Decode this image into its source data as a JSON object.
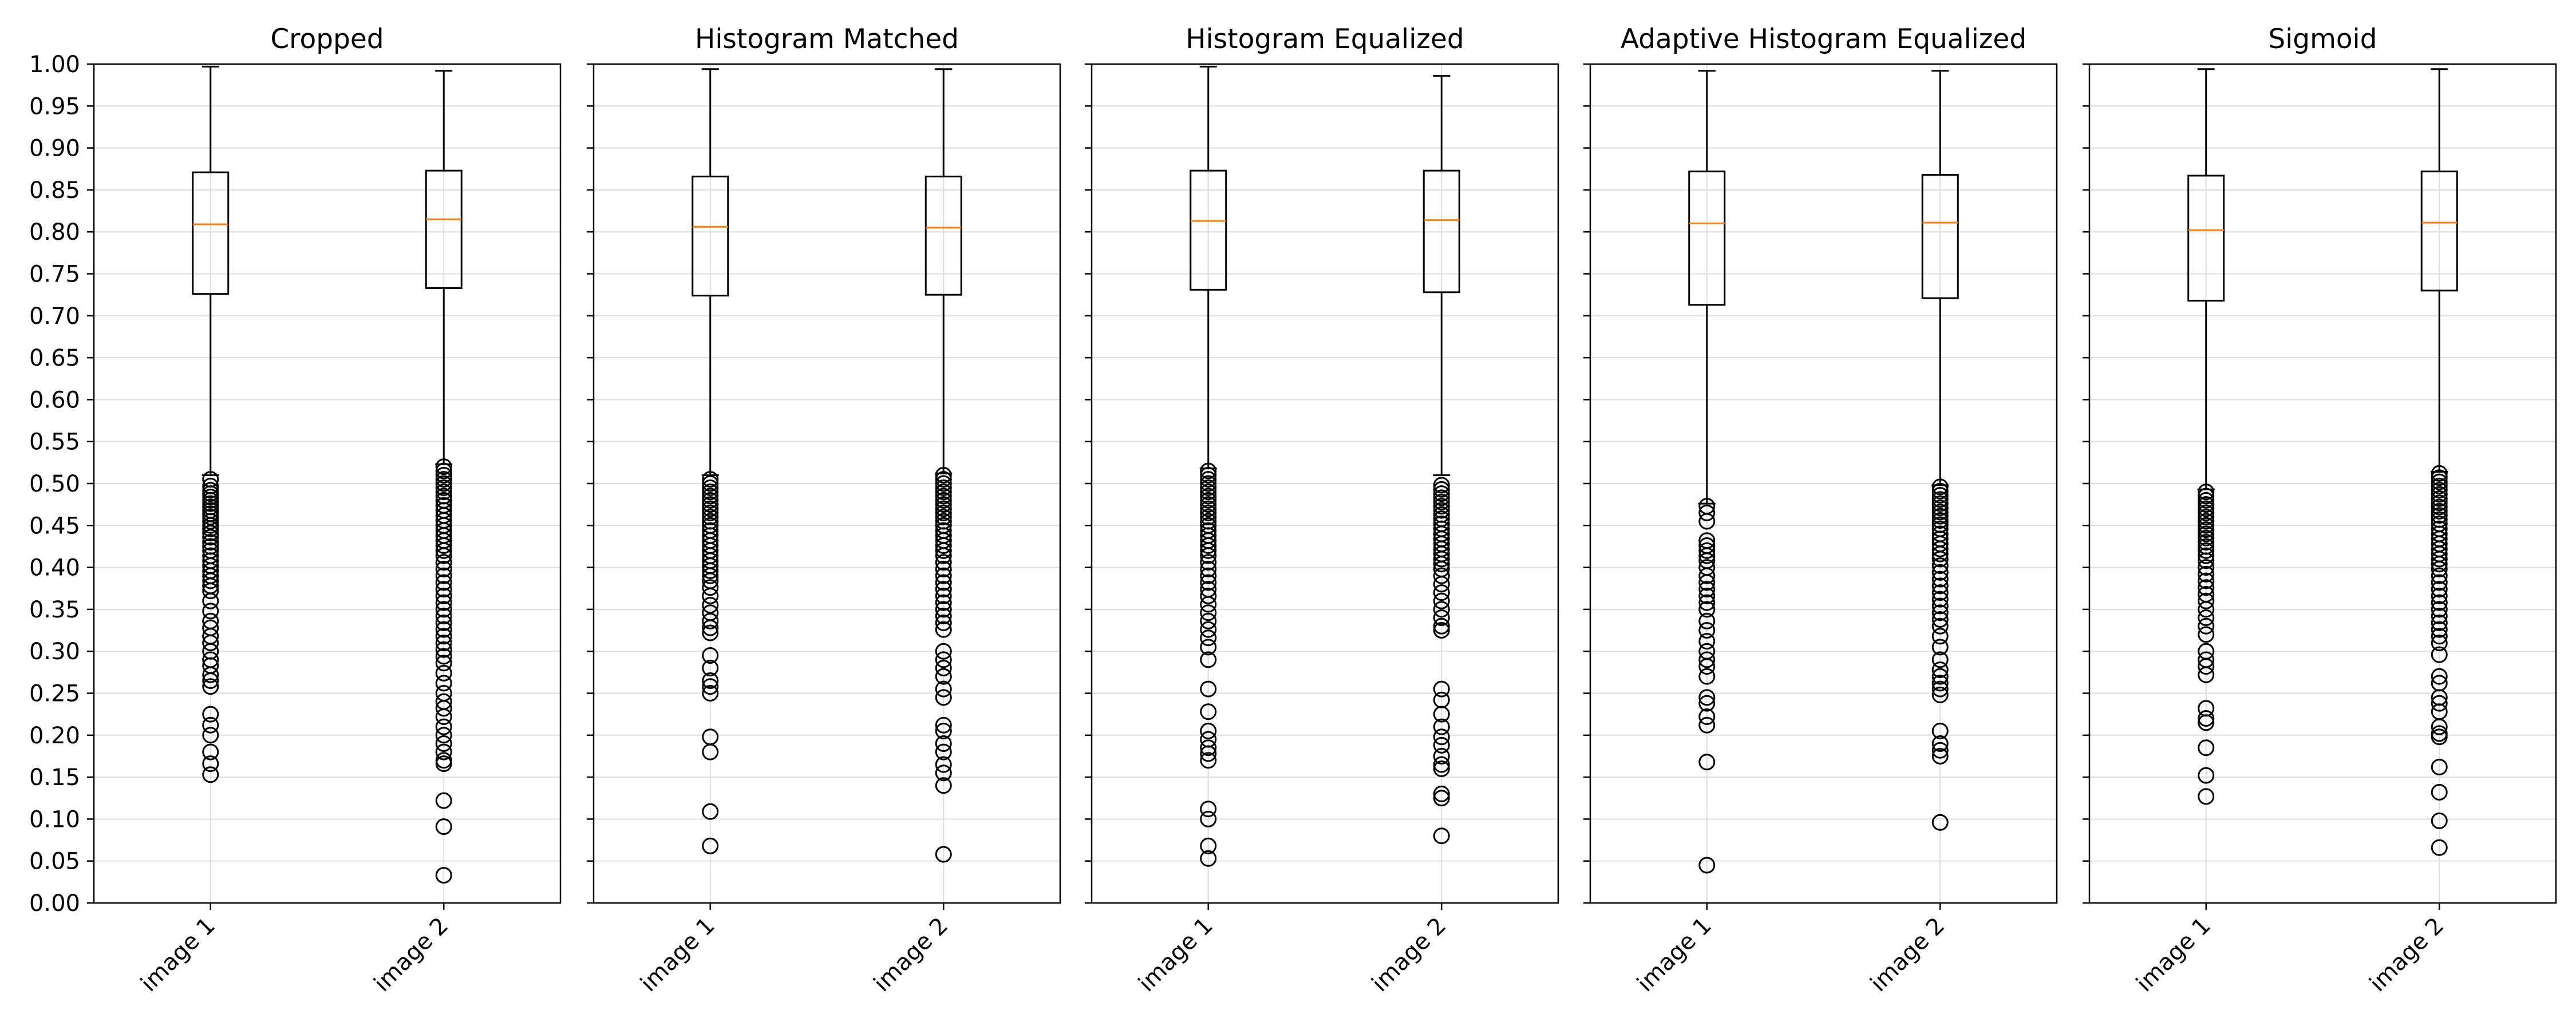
{
  "chart_data": {
    "type": "box",
    "ylim": [
      0,
      1
    ],
    "yticks": [
      0.0,
      0.05,
      0.1,
      0.15,
      0.2,
      0.25,
      0.3,
      0.35,
      0.4,
      0.45,
      0.5,
      0.55,
      0.6,
      0.65,
      0.7,
      0.75,
      0.8,
      0.85,
      0.9,
      0.95,
      1.0
    ],
    "ytick_labels": [
      "0.00",
      "0.05",
      "0.10",
      "0.15",
      "0.20",
      "0.25",
      "0.30",
      "0.35",
      "0.40",
      "0.45",
      "0.50",
      "0.55",
      "0.60",
      "0.65",
      "0.70",
      "0.75",
      "0.80",
      "0.85",
      "0.90",
      "0.95",
      "1.00"
    ],
    "grid": true,
    "shared_y": true,
    "categories": [
      "image 1",
      "image 2"
    ],
    "colors": {
      "box": "#000000",
      "median": "#ff7f0e",
      "grid": "#dddddd",
      "flier": "#000000"
    },
    "panels": [
      {
        "title": "Cropped",
        "boxes": [
          {
            "category": "image 1",
            "whisker_low": 0.51,
            "q1": 0.726,
            "median": 0.809,
            "q3": 0.871,
            "whisker_high": 0.997,
            "outliers": [
              0.505,
              0.497,
              0.492,
              0.488,
              0.484,
              0.48,
              0.476,
              0.472,
              0.468,
              0.464,
              0.46,
              0.455,
              0.45,
              0.446,
              0.441,
              0.436,
              0.43,
              0.425,
              0.42,
              0.414,
              0.408,
              0.402,
              0.396,
              0.39,
              0.384,
              0.378,
              0.372,
              0.36,
              0.348,
              0.336,
              0.328,
              0.318,
              0.31,
              0.3,
              0.29,
              0.283,
              0.272,
              0.265,
              0.258,
              0.225,
              0.212,
              0.2,
              0.18,
              0.166,
              0.153
            ]
          },
          {
            "category": "image 2",
            "whisker_low": 0.523,
            "q1": 0.733,
            "median": 0.815,
            "q3": 0.873,
            "whisker_high": 0.992,
            "outliers": [
              0.52,
              0.515,
              0.51,
              0.505,
              0.5,
              0.495,
              0.49,
              0.485,
              0.48,
              0.474,
              0.468,
              0.462,
              0.456,
              0.45,
              0.444,
              0.438,
              0.432,
              0.426,
              0.42,
              0.414,
              0.406,
              0.398,
              0.39,
              0.382,
              0.374,
              0.366,
              0.358,
              0.35,
              0.342,
              0.334,
              0.326,
              0.318,
              0.31,
              0.302,
              0.294,
              0.286,
              0.274,
              0.262,
              0.25,
              0.24,
              0.232,
              0.222,
              0.21,
              0.2,
              0.19,
              0.18,
              0.17,
              0.166,
              0.122,
              0.091,
              0.033
            ]
          }
        ]
      },
      {
        "title": "Histogram Matched",
        "boxes": [
          {
            "category": "image 1",
            "whisker_low": 0.51,
            "q1": 0.724,
            "median": 0.806,
            "q3": 0.866,
            "whisker_high": 0.994,
            "outliers": [
              0.505,
              0.5,
              0.495,
              0.49,
              0.485,
              0.48,
              0.475,
              0.47,
              0.465,
              0.46,
              0.455,
              0.45,
              0.444,
              0.438,
              0.432,
              0.426,
              0.42,
              0.414,
              0.408,
              0.402,
              0.396,
              0.39,
              0.384,
              0.376,
              0.366,
              0.355,
              0.346,
              0.336,
              0.328,
              0.322,
              0.295,
              0.28,
              0.265,
              0.258,
              0.25,
              0.198,
              0.18,
              0.109,
              0.068
            ]
          },
          {
            "category": "image 2",
            "whisker_low": 0.512,
            "q1": 0.725,
            "median": 0.805,
            "q3": 0.866,
            "whisker_high": 0.994,
            "outliers": [
              0.51,
              0.505,
              0.5,
              0.495,
              0.49,
              0.485,
              0.48,
              0.475,
              0.47,
              0.465,
              0.46,
              0.455,
              0.45,
              0.444,
              0.438,
              0.432,
              0.426,
              0.42,
              0.414,
              0.406,
              0.398,
              0.39,
              0.382,
              0.374,
              0.366,
              0.358,
              0.35,
              0.342,
              0.334,
              0.326,
              0.3,
              0.29,
              0.28,
              0.27,
              0.255,
              0.245,
              0.212,
              0.205,
              0.19,
              0.18,
              0.165,
              0.155,
              0.14,
              0.058
            ]
          }
        ]
      },
      {
        "title": "Histogram Equalized",
        "boxes": [
          {
            "category": "image 1",
            "whisker_low": 0.518,
            "q1": 0.731,
            "median": 0.813,
            "q3": 0.873,
            "whisker_high": 0.997,
            "outliers": [
              0.515,
              0.51,
              0.505,
              0.5,
              0.495,
              0.49,
              0.485,
              0.48,
              0.475,
              0.47,
              0.465,
              0.46,
              0.455,
              0.45,
              0.444,
              0.438,
              0.432,
              0.426,
              0.42,
              0.414,
              0.406,
              0.398,
              0.39,
              0.382,
              0.374,
              0.366,
              0.356,
              0.346,
              0.336,
              0.326,
              0.316,
              0.305,
              0.29,
              0.255,
              0.228,
              0.205,
              0.195,
              0.185,
              0.178,
              0.17,
              0.112,
              0.1,
              0.068,
              0.053
            ]
          },
          {
            "category": "image 2",
            "whisker_low": 0.51,
            "q1": 0.728,
            "median": 0.814,
            "q3": 0.873,
            "whisker_high": 0.986,
            "outliers": [
              0.498,
              0.493,
              0.488,
              0.483,
              0.478,
              0.473,
              0.468,
              0.463,
              0.458,
              0.452,
              0.446,
              0.44,
              0.434,
              0.428,
              0.422,
              0.416,
              0.41,
              0.404,
              0.398,
              0.39,
              0.38,
              0.37,
              0.36,
              0.35,
              0.34,
              0.33,
              0.325,
              0.255,
              0.242,
              0.225,
              0.21,
              0.198,
              0.188,
              0.175,
              0.165,
              0.16,
              0.13,
              0.125,
              0.08
            ]
          }
        ]
      },
      {
        "title": "Adaptive Histogram Equalized",
        "boxes": [
          {
            "category": "image 1",
            "whisker_low": 0.476,
            "q1": 0.713,
            "median": 0.81,
            "q3": 0.872,
            "whisker_high": 0.992,
            "outliers": [
              0.473,
              0.465,
              0.455,
              0.432,
              0.426,
              0.42,
              0.414,
              0.408,
              0.4,
              0.39,
              0.382,
              0.374,
              0.366,
              0.358,
              0.35,
              0.336,
              0.325,
              0.312,
              0.3,
              0.29,
              0.282,
              0.27,
              0.245,
              0.238,
              0.222,
              0.212,
              0.168,
              0.045
            ]
          },
          {
            "category": "image 2",
            "whisker_low": 0.498,
            "q1": 0.721,
            "median": 0.811,
            "q3": 0.868,
            "whisker_high": 0.992,
            "outliers": [
              0.496,
              0.491,
              0.486,
              0.481,
              0.476,
              0.471,
              0.466,
              0.461,
              0.456,
              0.451,
              0.446,
              0.44,
              0.434,
              0.428,
              0.422,
              0.416,
              0.41,
              0.402,
              0.394,
              0.386,
              0.378,
              0.37,
              0.362,
              0.354,
              0.346,
              0.338,
              0.33,
              0.318,
              0.305,
              0.29,
              0.278,
              0.27,
              0.262,
              0.255,
              0.248,
              0.205,
              0.19,
              0.182,
              0.175,
              0.096
            ]
          }
        ]
      },
      {
        "title": "Sigmoid",
        "boxes": [
          {
            "category": "image 1",
            "whisker_low": 0.493,
            "q1": 0.718,
            "median": 0.802,
            "q3": 0.867,
            "whisker_high": 0.994,
            "outliers": [
              0.49,
              0.485,
              0.48,
              0.475,
              0.47,
              0.465,
              0.46,
              0.455,
              0.45,
              0.445,
              0.44,
              0.435,
              0.43,
              0.425,
              0.42,
              0.414,
              0.408,
              0.4,
              0.392,
              0.384,
              0.376,
              0.368,
              0.36,
              0.35,
              0.34,
              0.33,
              0.32,
              0.3,
              0.29,
              0.282,
              0.272,
              0.232,
              0.22,
              0.215,
              0.185,
              0.152,
              0.127
            ]
          },
          {
            "category": "image 2",
            "whisker_low": 0.514,
            "q1": 0.73,
            "median": 0.811,
            "q3": 0.872,
            "whisker_high": 0.994,
            "outliers": [
              0.512,
              0.507,
              0.502,
              0.497,
              0.492,
              0.487,
              0.482,
              0.477,
              0.472,
              0.467,
              0.462,
              0.457,
              0.452,
              0.446,
              0.44,
              0.434,
              0.428,
              0.422,
              0.416,
              0.41,
              0.404,
              0.398,
              0.39,
              0.382,
              0.374,
              0.366,
              0.358,
              0.35,
              0.342,
              0.334,
              0.326,
              0.318,
              0.31,
              0.296,
              0.27,
              0.262,
              0.245,
              0.238,
              0.228,
              0.21,
              0.202,
              0.198,
              0.162,
              0.132,
              0.098,
              0.066
            ]
          }
        ]
      }
    ]
  }
}
